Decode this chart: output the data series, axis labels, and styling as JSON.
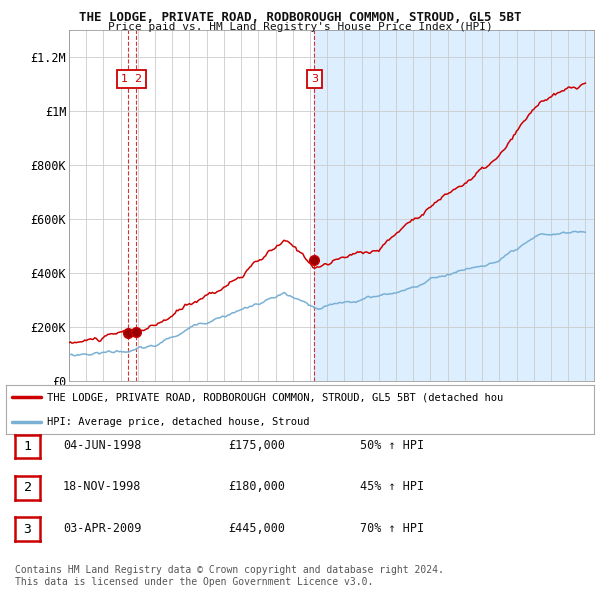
{
  "title": "THE LODGE, PRIVATE ROAD, RODBOROUGH COMMON, STROUD, GL5 5BT",
  "subtitle": "Price paid vs. HM Land Registry's House Price Index (HPI)",
  "ylabel_ticks": [
    0,
    200000,
    400000,
    600000,
    800000,
    1000000,
    1200000
  ],
  "ylabel_labels": [
    "£0",
    "£200K",
    "£400K",
    "£600K",
    "£800K",
    "£1M",
    "£1.2M"
  ],
  "ylim": [
    0,
    1300000
  ],
  "xlim_start": 1995.0,
  "xlim_end": 2025.5,
  "sale_points": [
    {
      "year": 1998.42,
      "price": 175000,
      "label": "1"
    },
    {
      "year": 1998.88,
      "price": 180000,
      "label": "2"
    },
    {
      "year": 2009.25,
      "price": 445000,
      "label": "3"
    }
  ],
  "legend_red": "THE LODGE, PRIVATE ROAD, RODBOROUGH COMMON, STROUD, GL5 5BT (detached hou",
  "legend_blue": "HPI: Average price, detached house, Stroud",
  "table_rows": [
    {
      "num": "1",
      "date": "04-JUN-1998",
      "price": "£175,000",
      "hpi": "50% ↑ HPI"
    },
    {
      "num": "2",
      "date": "18-NOV-1998",
      "price": "£180,000",
      "hpi": "45% ↑ HPI"
    },
    {
      "num": "3",
      "date": "03-APR-2009",
      "price": "£445,000",
      "hpi": "70% ↑ HPI"
    }
  ],
  "footer": "Contains HM Land Registry data © Crown copyright and database right 2024.\nThis data is licensed under the Open Government Licence v3.0.",
  "background_color": "#ffffff",
  "plot_bg_color": "#ffffff",
  "plot_bg_color2": "#ddeeff",
  "grid_color": "#cccccc",
  "red_color": "#cc0000",
  "blue_color": "#7ab0d4"
}
